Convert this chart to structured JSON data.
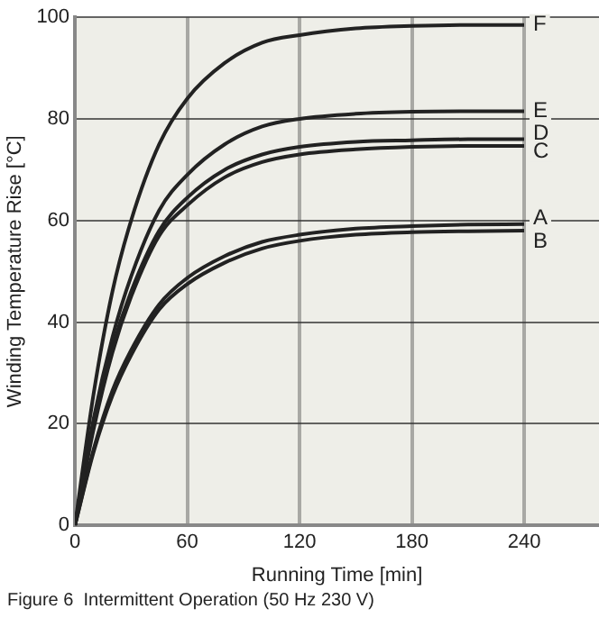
{
  "chart_data": {
    "type": "line",
    "xlabel": "Running Time [min]",
    "ylabel": "Winding Temperature Rise [°C]",
    "annotations": [
      "Figure 6  Intermittent Operation (50 Hz 230 V)"
    ],
    "x": [
      0,
      10,
      20,
      30,
      45,
      60,
      80,
      100,
      120,
      150,
      180,
      210,
      240
    ],
    "series": [
      {
        "name": "F",
        "color": "#222222",
        "values": [
          0,
          26,
          46,
          60,
          75,
          84,
          91,
          95,
          96.5,
          97.8,
          98.3,
          98.5,
          98.5
        ]
      },
      {
        "name": "E",
        "color": "#222222",
        "values": [
          0,
          21,
          37,
          49,
          62,
          69,
          75,
          78.5,
          80,
          81,
          81.4,
          81.5,
          81.5
        ]
      },
      {
        "name": "D",
        "color": "#222222",
        "values": [
          0,
          20,
          35,
          46,
          58,
          64.5,
          70,
          73,
          74.5,
          75.5,
          75.8,
          76,
          76
        ]
      },
      {
        "name": "C",
        "color": "#222222",
        "values": [
          0,
          19,
          34,
          45,
          57,
          63,
          68.5,
          71.5,
          73,
          74,
          74.5,
          74.7,
          74.7
        ]
      },
      {
        "name": "A",
        "color": "#222222",
        "values": [
          0,
          15,
          26.5,
          34.5,
          43.5,
          48.7,
          53,
          55.8,
          57.2,
          58.4,
          58.9,
          59.2,
          59.3
        ]
      },
      {
        "name": "B",
        "color": "#222222",
        "values": [
          0,
          14.5,
          25.5,
          33.5,
          42.5,
          47.5,
          51.7,
          54.5,
          56,
          57.2,
          57.7,
          57.9,
          58
        ]
      }
    ],
    "xlim": [
      0,
      280
    ],
    "xticks": [
      0,
      60,
      120,
      180,
      240
    ],
    "ylim": [
      0,
      100
    ],
    "yticks": [
      0,
      20,
      40,
      60,
      80,
      100
    ],
    "grid": true,
    "legend": false,
    "marker": "none",
    "line_style": "solid"
  }
}
